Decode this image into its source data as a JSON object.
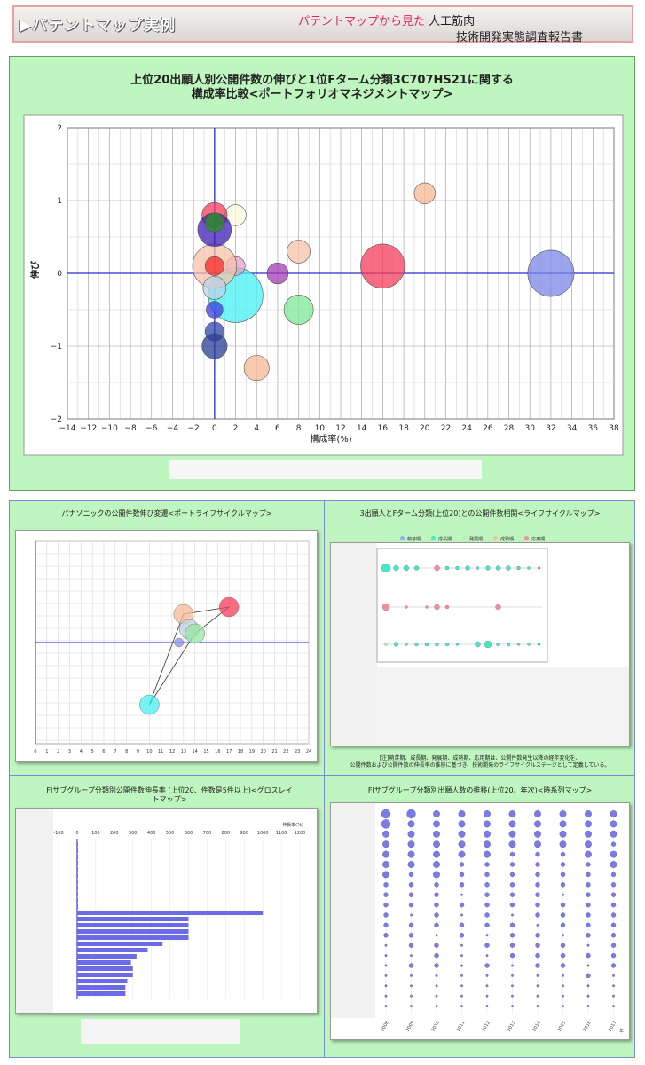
{
  "header": {
    "title": "▶パテントマップ実例",
    "subtitle_red": "パテントマップから見た",
    "subtitle_black": "人工筋肉",
    "subtitle2": "技術開発実態調査報告書"
  },
  "main_chart": {
    "title_line1": "上位20出願人別公開件数の伸びと1位Fターム分類3C707HS21に関する",
    "title_line2": "構成率比較<ポートフォリオマネジメントマップ>",
    "x_ticks": [
      "-14",
      "-12",
      "-10",
      "-8",
      "-6",
      "-4",
      "-2",
      "0",
      "2",
      "4",
      "6",
      "8",
      "10",
      "12",
      "14",
      "16",
      "18",
      "20",
      "22",
      "24",
      "26",
      "28",
      "30",
      "32",
      "34",
      "36",
      "38"
    ],
    "y_ticks": [
      "2",
      "1",
      "0",
      "-1",
      "-2"
    ]
  },
  "chart_data": [
    {
      "type": "scatter",
      "title": "上位20出願人別公開件数の伸びと1位Fターム分類3C707HS21に関する 構成率比較<ポートフォリオマネジメントマップ>",
      "xlabel": "構成率(%)",
      "ylabel": "伸び",
      "xlim": [
        -14,
        38
      ],
      "ylim": [
        -2,
        2
      ],
      "grid": true,
      "points": [
        {
          "x": 32,
          "y": 0,
          "r": 2.2,
          "color": "#7986e6"
        },
        {
          "x": 16,
          "y": 0.1,
          "r": 2.1,
          "color": "#f53c5a"
        },
        {
          "x": 20,
          "y": 1.1,
          "r": 1.0,
          "color": "#f5b896"
        },
        {
          "x": 8,
          "y": 0.3,
          "r": 1.1,
          "color": "#f5c3aa"
        },
        {
          "x": 8,
          "y": -0.5,
          "r": 1.4,
          "color": "#7de896"
        },
        {
          "x": 6,
          "y": 0,
          "r": 1.0,
          "color": "#a03cb4"
        },
        {
          "x": 4,
          "y": -1.3,
          "r": 1.2,
          "color": "#f5b896"
        },
        {
          "x": 2,
          "y": -0.3,
          "r": 2.6,
          "color": "#46f0f0"
        },
        {
          "x": 2,
          "y": 0.8,
          "r": 1.0,
          "color": "#fafadc"
        },
        {
          "x": 2,
          "y": 0.1,
          "r": 0.9,
          "color": "#e6a0c8"
        },
        {
          "x": 0,
          "y": 0.1,
          "r": 2.1,
          "color": "#f5c3aa"
        },
        {
          "x": 0,
          "y": 0.1,
          "r": 0.9,
          "color": "#f52828"
        },
        {
          "x": 0,
          "y": 0.8,
          "r": 1.2,
          "color": "#f53c5a"
        },
        {
          "x": 0,
          "y": 0.6,
          "r": 1.6,
          "color": "#3c1eb4"
        },
        {
          "x": 0,
          "y": 0.7,
          "r": 0.9,
          "color": "#28961e"
        },
        {
          "x": 0,
          "y": -0.2,
          "r": 1.1,
          "color": "#bed2e6"
        },
        {
          "x": 0,
          "y": -0.5,
          "r": 0.8,
          "color": "#3c3cdc"
        },
        {
          "x": 0,
          "y": -0.8,
          "r": 0.9,
          "color": "#3246aa"
        },
        {
          "x": 0,
          "y": -1.0,
          "r": 1.2,
          "color": "#283c96"
        }
      ]
    },
    {
      "type": "scatter",
      "title": "パナソニックの公開件数伸び変遷<ポートライフサイクルマップ>",
      "x_ticks": [
        "0",
        "1",
        "2",
        "3",
        "4",
        "5",
        "6",
        "7",
        "8",
        "9",
        "10",
        "11",
        "12",
        "13",
        "14",
        "15",
        "16",
        "17",
        "18",
        "19",
        "20",
        "21",
        "22",
        "23",
        "24"
      ],
      "xlim": [
        0,
        24
      ],
      "points": [
        {
          "x": 10,
          "y": -7,
          "color": "#46f0f0"
        },
        {
          "x": 13,
          "y": 3.2,
          "color": "#f5b896"
        },
        {
          "x": 13.5,
          "y": 1.5,
          "color": "#bed2e6"
        },
        {
          "x": 14,
          "y": 1,
          "color": "#96e6a0"
        },
        {
          "x": 17,
          "y": 4,
          "color": "#f53c5a"
        },
        {
          "x": 12.6,
          "y": 0,
          "color": "#8c8cf0"
        }
      ]
    },
    {
      "type": "scatter",
      "title": "3出願人とFターム分類(上位20)との公開件数相関<ライフサイクルマップ>",
      "series": [
        {
          "name": "萌芽期",
          "color": "#8ab4f8"
        },
        {
          "name": "成長期",
          "color": "#46e6c8"
        },
        {
          "name": "発展期",
          "color": "#b4f0b4"
        },
        {
          "name": "成熟期",
          "color": "#f5c3a0"
        },
        {
          "name": "応用期",
          "color": "#f58ca0"
        }
      ]
    },
    {
      "type": "bar",
      "title": "FIサブグループ分類別公開件数伸長率 (上位20、件数是5件以上)<グロスレイトマップ>",
      "xlabel": "伸長率(%)",
      "x_ticks": [
        "-100",
        "0",
        "100",
        "200",
        "300",
        "400",
        "500",
        "600",
        "700",
        "800",
        "900",
        "1000",
        "1100",
        "1200"
      ],
      "xlim": [
        -100,
        1200
      ],
      "values": [
        5,
        5,
        5,
        5,
        5,
        5,
        5,
        5,
        5,
        5,
        5,
        1000,
        600,
        600,
        600,
        600,
        460,
        380,
        320,
        290,
        300,
        300,
        270,
        260,
        260
      ]
    },
    {
      "type": "scatter",
      "title": "FIサブグループ分類別出願人数の推移(上位20、年次)<時系列マップ>",
      "categories": [
        "2008",
        "2009",
        "2010",
        "2011",
        "2012",
        "2013",
        "2014",
        "2015",
        "2016",
        "2017"
      ],
      "xlabel": "年"
    }
  ],
  "panels": {
    "top_right_note_line1": "[注]萌芽期、成長期、発展期、成熟期、応用期は、公開件数発生以降の経年変化を、",
    "top_right_note_line2": "公開件数および公開件数の伸長率の推移に基づき、技術開発のライフサイクルステージとして定義している。"
  }
}
